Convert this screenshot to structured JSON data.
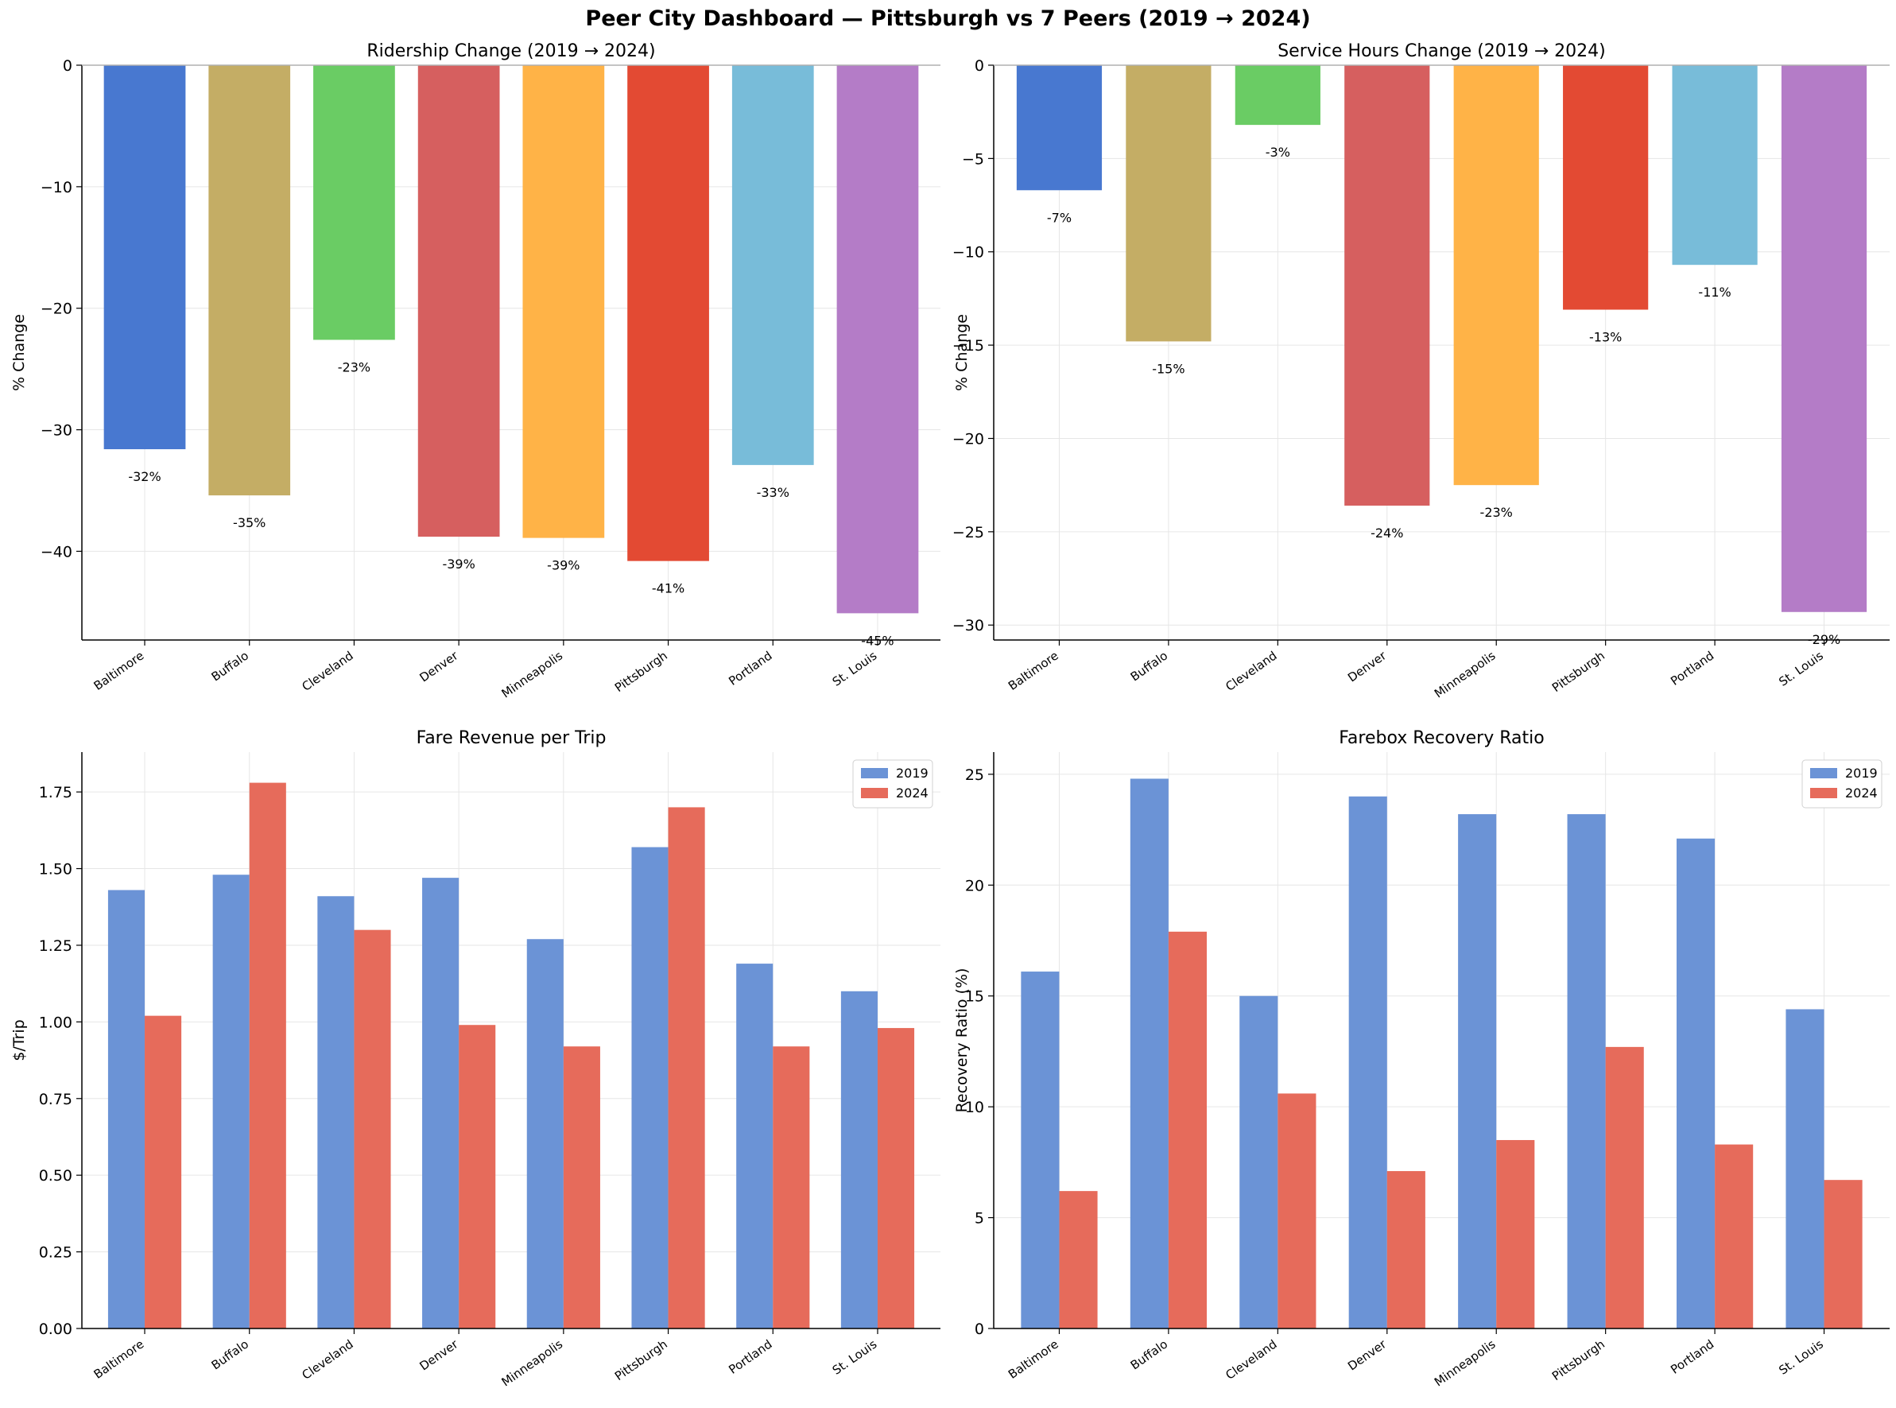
{
  "title": "Peer City Dashboard — Pittsburgh vs 7 Peers (2019 → 2024)",
  "colors": {
    "city_bars": [
      "#4878d0",
      "#c4ad65",
      "#6acc64",
      "#d65f5f",
      "#ffb347",
      "#e34a33",
      "#78bcd9",
      "#b47cc7"
    ],
    "series_2019": "#6b93d6",
    "series_2024": "#e66b5b",
    "grid": "#e6e6e6",
    "axis": "#000000"
  },
  "chart_data": [
    {
      "type": "bar",
      "title": "Ridership Change (2019 → 2024)",
      "xlabel": "",
      "ylabel": "% Change",
      "categories": [
        "Baltimore",
        "Buffalo",
        "Cleveland",
        "Denver",
        "Minneapolis",
        "Pittsburgh",
        "Portland",
        "St. Louis"
      ],
      "values": [
        -31.6,
        -35.4,
        -22.6,
        -38.8,
        -38.9,
        -40.8,
        -32.9,
        -45.1
      ],
      "data_labels": [
        "-32%",
        "-35%",
        "-23%",
        "-39%",
        "-39%",
        "-41%",
        "-33%",
        "-45%"
      ],
      "ylim": [
        -47.3,
        0
      ],
      "yticks": [
        0,
        -10,
        -20,
        -30,
        -40
      ],
      "grid": true
    },
    {
      "type": "bar",
      "title": "Service Hours Change (2019 → 2024)",
      "xlabel": "",
      "ylabel": "% Change",
      "categories": [
        "Baltimore",
        "Buffalo",
        "Cleveland",
        "Denver",
        "Minneapolis",
        "Pittsburgh",
        "Portland",
        "St. Louis"
      ],
      "values": [
        -6.7,
        -14.8,
        -3.2,
        -23.6,
        -22.5,
        -13.1,
        -10.7,
        -29.3
      ],
      "data_labels": [
        "-7%",
        "-15%",
        "-3%",
        "-24%",
        "-23%",
        "-13%",
        "-11%",
        "-29%"
      ],
      "ylim": [
        -30.8,
        0
      ],
      "yticks": [
        0,
        -5,
        -10,
        -15,
        -20,
        -25,
        -30
      ],
      "grid": true
    },
    {
      "type": "bar",
      "title": "Fare Revenue per Trip",
      "xlabel": "",
      "ylabel": "$/Trip",
      "categories": [
        "Baltimore",
        "Buffalo",
        "Cleveland",
        "Denver",
        "Minneapolis",
        "Pittsburgh",
        "Portland",
        "St. Louis"
      ],
      "series": [
        {
          "name": "2019",
          "values": [
            1.43,
            1.48,
            1.41,
            1.47,
            1.27,
            1.57,
            1.19,
            1.1
          ]
        },
        {
          "name": "2024",
          "values": [
            1.02,
            1.78,
            1.3,
            0.99,
            0.92,
            1.7,
            0.92,
            0.98
          ]
        }
      ],
      "ylim": [
        0,
        1.88
      ],
      "yticks": [
        0.0,
        0.25,
        0.5,
        0.75,
        1.0,
        1.25,
        1.5,
        1.75
      ],
      "ytick_labels": [
        "0.00",
        "0.25",
        "0.50",
        "0.75",
        "1.00",
        "1.25",
        "1.50",
        "1.75"
      ],
      "legend": "top-right",
      "grid": true
    },
    {
      "type": "bar",
      "title": "Farebox Recovery Ratio",
      "xlabel": "",
      "ylabel": "Recovery Ratio (%)",
      "categories": [
        "Baltimore",
        "Buffalo",
        "Cleveland",
        "Denver",
        "Minneapolis",
        "Pittsburgh",
        "Portland",
        "St. Louis"
      ],
      "series": [
        {
          "name": "2019",
          "values": [
            16.1,
            24.8,
            15.0,
            24.0,
            23.2,
            23.2,
            22.1,
            14.4
          ]
        },
        {
          "name": "2024",
          "values": [
            6.2,
            17.9,
            10.6,
            7.1,
            8.5,
            12.7,
            8.3,
            6.7
          ]
        }
      ],
      "ylim": [
        0,
        26.0
      ],
      "yticks": [
        0,
        5,
        10,
        15,
        20,
        25
      ],
      "legend": "top-right",
      "grid": true
    }
  ]
}
